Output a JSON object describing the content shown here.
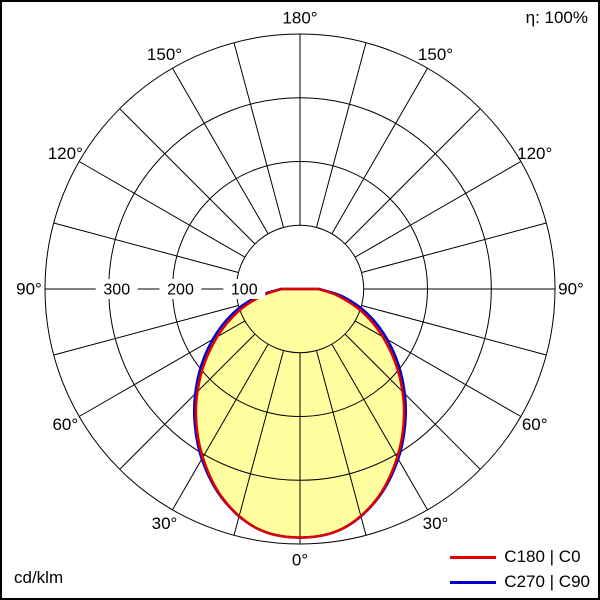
{
  "page": {
    "efficiency_label": "η: 100%",
    "units_label": "cd/klm"
  },
  "chart_data": {
    "type": "polar_intensity_distribution",
    "units": "cd/klm",
    "efficiency": "η: 100%",
    "r_max": 400,
    "rings": [
      100,
      200,
      300,
      400
    ],
    "ring_tick_labels": [
      300,
      200,
      100
    ],
    "spoke_step_deg": 15,
    "angle_labels_deg": [
      0,
      30,
      60,
      90,
      120,
      150,
      180
    ],
    "angle_label_suffix": "°",
    "fill_color": "#ffffa0",
    "grid_color": "#000000",
    "gamma_deg": [
      0,
      10,
      20,
      30,
      40,
      50,
      60,
      70,
      80,
      90
    ],
    "series": [
      {
        "name": "C180 | C0",
        "color": "#e00000",
        "values": [
          390,
          382,
          351,
          305,
          254,
          201,
          150,
          103,
          60,
          28
        ]
      },
      {
        "name": "C270 | C90",
        "color": "#0000d0",
        "values": [
          390,
          382,
          352,
          308,
          258,
          207,
          158,
          112,
          68,
          30
        ]
      }
    ]
  }
}
